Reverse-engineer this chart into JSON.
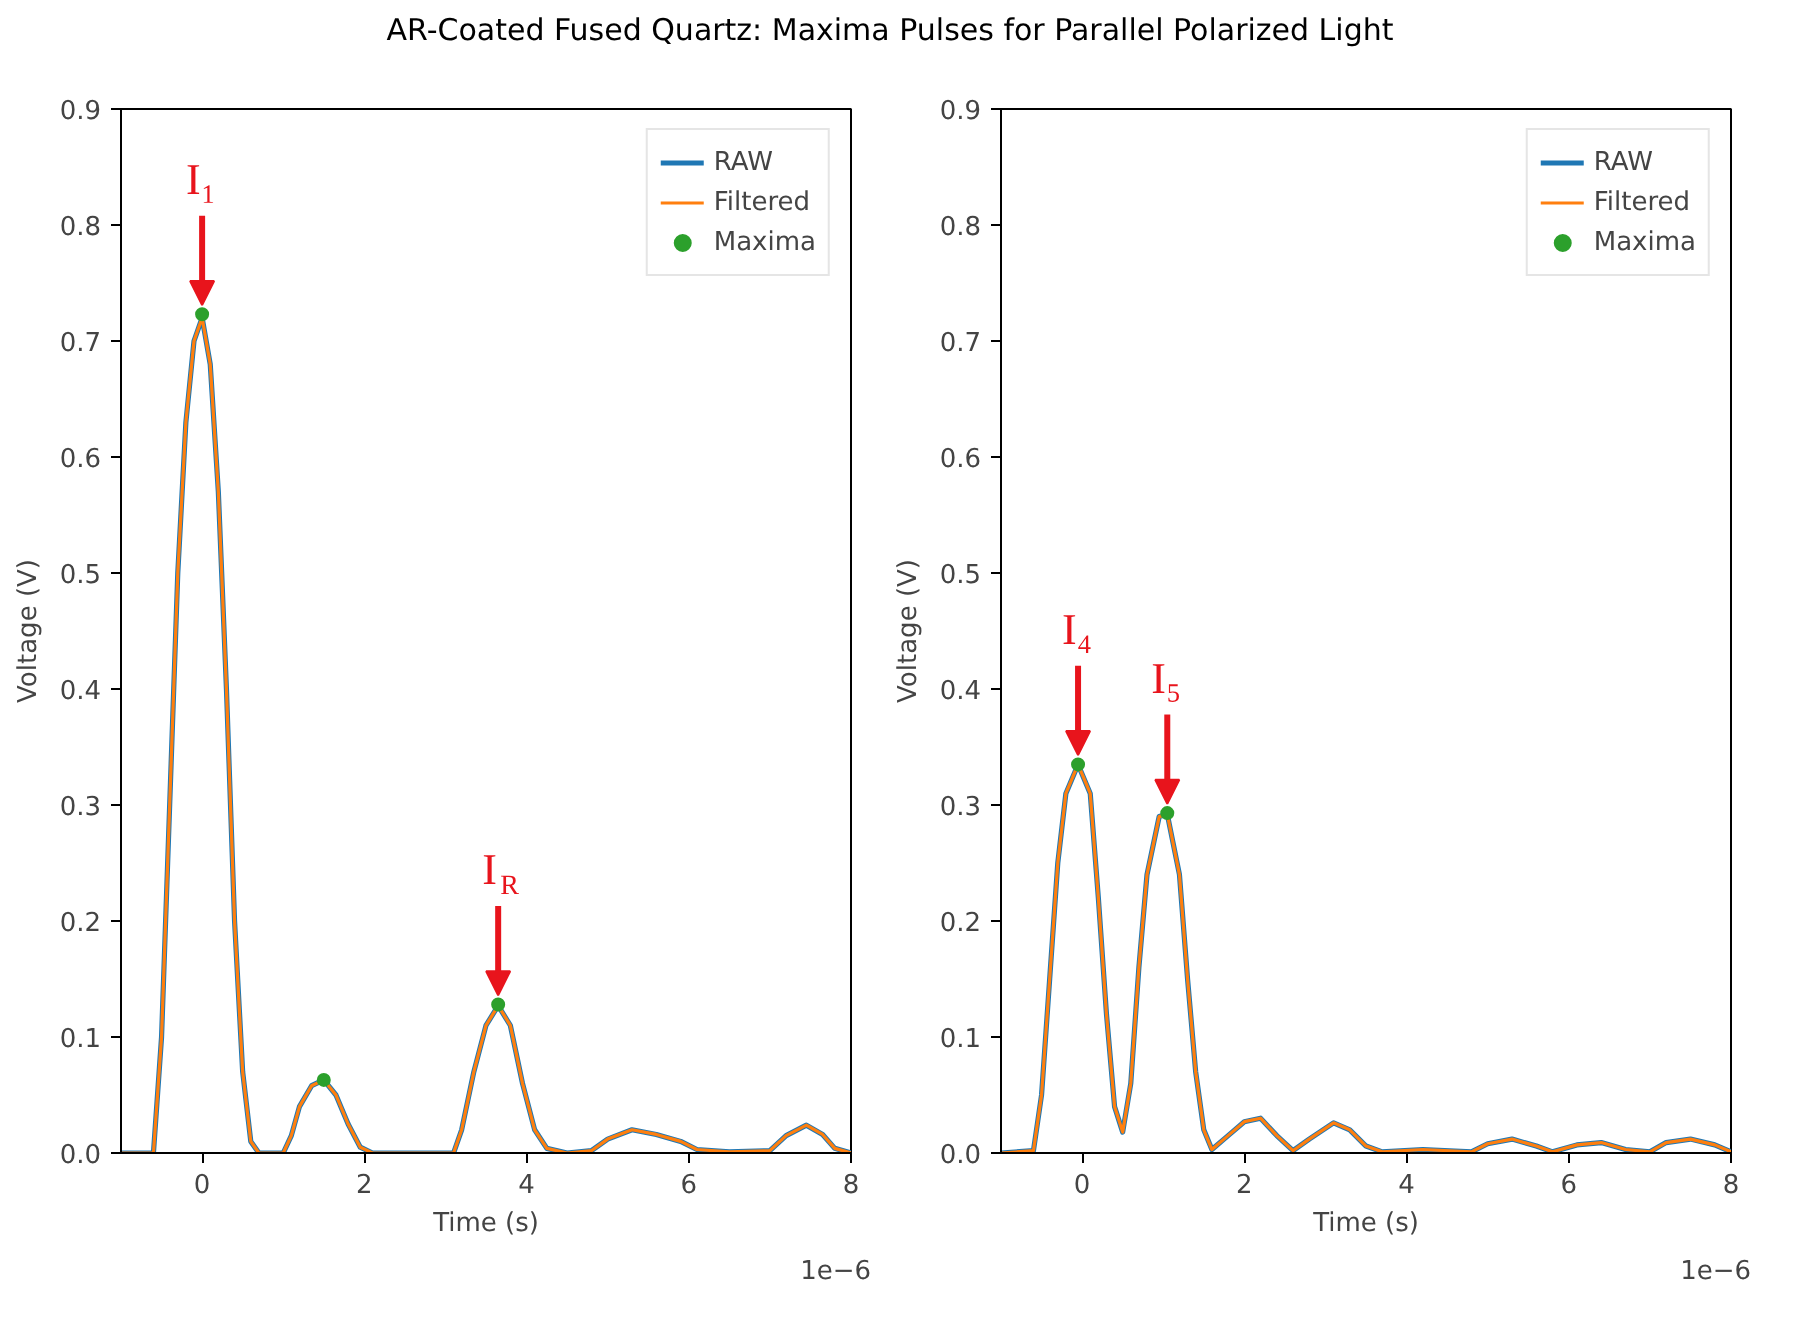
{
  "chart_data": [
    {
      "type": "line",
      "title": "AR-Coated Fused Quartz: Maxima Pulses for Parallel Polarized Light",
      "xlabel": "Time (s)",
      "ylabel": "Voltage (V)",
      "xlim": [
        -1,
        8
      ],
      "xticks": [
        0,
        2,
        4,
        6,
        8
      ],
      "ylim": [
        0,
        0.9
      ],
      "yticks": [
        {
          "value": 0,
          "label": "0.0"
        },
        0.1,
        0.2,
        0.3,
        0.4,
        0.5,
        0.6,
        0.7,
        0.8,
        0.9
      ],
      "grid": false,
      "legend": "top right",
      "marker": "none",
      "line_style": "solid",
      "series": [
        {
          "name": "RAW",
          "color": "#1f77b4",
          "x": [
            -1,
            -0.6,
            -0.5,
            -0.4,
            -0.3,
            -0.2,
            -0.1,
            0,
            0.1,
            0.2,
            0.3,
            0.4,
            0.5,
            0.6,
            0.7,
            1.0,
            1.1,
            1.2,
            1.35,
            1.5,
            1.65,
            1.8,
            1.95,
            2.1,
            3.1,
            3.2,
            3.35,
            3.5,
            3.65,
            3.8,
            3.95,
            4.1,
            4.25,
            4.5,
            4.8,
            5.0,
            5.3,
            5.6,
            5.9,
            6.1,
            6.5,
            7.0,
            7.2,
            7.45,
            7.65,
            7.8,
            8
          ],
          "values": [
            0,
            0,
            0.1,
            0.3,
            0.5,
            0.63,
            0.7,
            0.72,
            0.68,
            0.57,
            0.4,
            0.2,
            0.07,
            0.01,
            0,
            0,
            0.015,
            0.04,
            0.058,
            0.063,
            0.05,
            0.025,
            0.005,
            0,
            0,
            0.02,
            0.07,
            0.11,
            0.127,
            0.11,
            0.06,
            0.02,
            0.004,
            0,
            0.002,
            0.012,
            0.02,
            0.016,
            0.01,
            0.003,
            0.001,
            0.002,
            0.015,
            0.024,
            0.016,
            0.004,
            0
          ]
        },
        {
          "name": "Filtered",
          "color": "#ff7f0e",
          "x": [
            -1,
            -0.6,
            -0.5,
            -0.4,
            -0.3,
            -0.2,
            -0.1,
            0,
            0.1,
            0.2,
            0.3,
            0.4,
            0.5,
            0.6,
            0.7,
            1.0,
            1.1,
            1.2,
            1.35,
            1.5,
            1.65,
            1.8,
            1.95,
            2.1,
            3.1,
            3.2,
            3.35,
            3.5,
            3.65,
            3.8,
            3.95,
            4.1,
            4.25,
            4.5,
            4.8,
            5.0,
            5.3,
            5.6,
            5.9,
            6.1,
            6.5,
            7.0,
            7.2,
            7.45,
            7.65,
            7.8,
            8
          ],
          "values": [
            0,
            0,
            0.1,
            0.3,
            0.5,
            0.63,
            0.7,
            0.72,
            0.68,
            0.57,
            0.4,
            0.2,
            0.07,
            0.01,
            0,
            0,
            0.015,
            0.04,
            0.058,
            0.063,
            0.05,
            0.025,
            0.005,
            0,
            0,
            0.02,
            0.07,
            0.11,
            0.127,
            0.11,
            0.06,
            0.02,
            0.004,
            0,
            0.002,
            0.012,
            0.02,
            0.016,
            0.01,
            0.003,
            0.001,
            0.002,
            0.015,
            0.024,
            0.016,
            0.004,
            0
          ]
        },
        {
          "name": "Maxima",
          "type": "scatter",
          "marker": "circle",
          "color": "#2ca02c",
          "x": [
            0,
            1.5,
            3.65
          ],
          "values": [
            0.723,
            0.063,
            0.128
          ]
        }
      ],
      "annotations": [
        {
          "text": "I₁",
          "x": 0,
          "y": 0.723
        },
        {
          "text": "I$_{R}$",
          "x": 3.65,
          "y": 0.128
        },
        "1e−6"
      ]
    },
    {
      "type": "line",
      "xlabel": "Time (s)",
      "ylabel": "Voltage (V)",
      "xlim": [
        -1,
        8
      ],
      "xticks": [
        0,
        2,
        4,
        6,
        8
      ],
      "ylim": [
        0,
        0.9
      ],
      "yticks": [
        {
          "value": 0,
          "label": "0.0"
        },
        0.1,
        0.2,
        0.3,
        0.4,
        0.5,
        0.6,
        0.7,
        0.8,
        0.9
      ],
      "grid": false,
      "legend": "top right",
      "marker": "none",
      "line_style": "solid",
      "series": [
        {
          "name": "RAW",
          "color": "#1f77b4",
          "x": [
            -1,
            -0.6,
            -0.5,
            -0.4,
            -0.3,
            -0.2,
            -0.05,
            0.1,
            0.2,
            0.3,
            0.4,
            0.5,
            0.6,
            0.7,
            0.8,
            0.95,
            1.05,
            1.2,
            1.3,
            1.4,
            1.5,
            1.6,
            1.8,
            2.0,
            2.2,
            2.4,
            2.6,
            2.8,
            3.1,
            3.3,
            3.5,
            3.7,
            4.2,
            4.8,
            5.0,
            5.3,
            5.6,
            5.8,
            6.1,
            6.4,
            6.7,
            7.0,
            7.2,
            7.5,
            7.8,
            8
          ],
          "values": [
            0,
            0.002,
            0.05,
            0.15,
            0.25,
            0.31,
            0.335,
            0.31,
            0.22,
            0.12,
            0.04,
            0.018,
            0.06,
            0.16,
            0.24,
            0.29,
            0.292,
            0.24,
            0.15,
            0.07,
            0.02,
            0.003,
            0.015,
            0.027,
            0.03,
            0.015,
            0.002,
            0.012,
            0.026,
            0.02,
            0.006,
            0.001,
            0.003,
            0.001,
            0.008,
            0.012,
            0.006,
            0.001,
            0.007,
            0.009,
            0.003,
            0.001,
            0.009,
            0.012,
            0.007,
            0.001
          ]
        },
        {
          "name": "Filtered",
          "color": "#ff7f0e",
          "x": [
            -1,
            -0.6,
            -0.5,
            -0.4,
            -0.3,
            -0.2,
            -0.05,
            0.1,
            0.2,
            0.3,
            0.4,
            0.5,
            0.6,
            0.7,
            0.8,
            0.95,
            1.05,
            1.2,
            1.3,
            1.4,
            1.5,
            1.6,
            1.8,
            2.0,
            2.2,
            2.4,
            2.6,
            2.8,
            3.1,
            3.3,
            3.5,
            3.7,
            4.2,
            4.8,
            5.0,
            5.3,
            5.6,
            5.8,
            6.1,
            6.4,
            6.7,
            7.0,
            7.2,
            7.5,
            7.8,
            8
          ],
          "values": [
            0,
            0.002,
            0.05,
            0.15,
            0.25,
            0.31,
            0.335,
            0.31,
            0.22,
            0.12,
            0.04,
            0.018,
            0.06,
            0.16,
            0.24,
            0.29,
            0.292,
            0.24,
            0.15,
            0.07,
            0.02,
            0.003,
            0.015,
            0.027,
            0.03,
            0.015,
            0.002,
            0.012,
            0.026,
            0.02,
            0.006,
            0.001,
            0.003,
            0.001,
            0.008,
            0.012,
            0.006,
            0.001,
            0.007,
            0.009,
            0.003,
            0.001,
            0.009,
            0.012,
            0.007,
            0.001
          ]
        },
        {
          "name": "Maxima",
          "type": "scatter",
          "marker": "circle",
          "color": "#2ca02c",
          "x": [
            -0.05,
            1.05
          ],
          "values": [
            0.335,
            0.293
          ]
        }
      ],
      "annotations": [
        {
          "text": "I₄",
          "x": -0.05,
          "y": 0.335
        },
        {
          "text": "I₅",
          "x": 1.05,
          "y": 0.293
        },
        "1e−6"
      ]
    }
  ]
}
